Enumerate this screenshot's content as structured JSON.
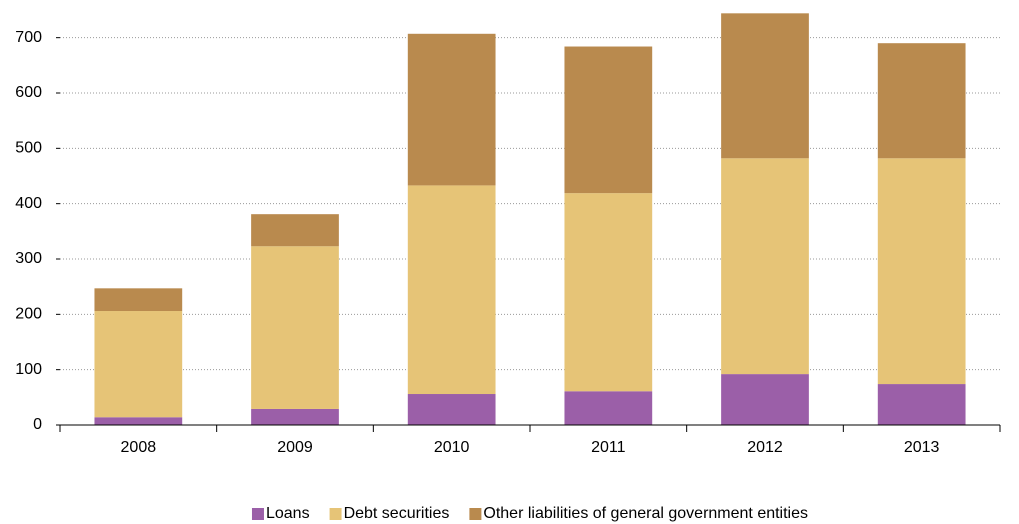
{
  "chart_data": {
    "type": "stacked_bar",
    "categories": [
      "2008",
      "2009",
      "2010",
      "2011",
      "2012",
      "2013"
    ],
    "series": [
      {
        "name": "Loans",
        "color": "#9b5fa8",
        "values": [
          14,
          29,
          56,
          61,
          92,
          74
        ]
      },
      {
        "name": "Debt securities",
        "color": "#e6c477",
        "values": [
          192,
          294,
          377,
          358,
          390,
          408
        ]
      },
      {
        "name": "Other liabilities of general government entities",
        "color": "#b98a4e",
        "values": [
          41,
          58,
          274,
          265,
          262,
          208
        ]
      }
    ],
    "ylim": [
      0,
      750
    ],
    "yticks": [
      0,
      100,
      200,
      300,
      400,
      500,
      600,
      700
    ],
    "grid": true,
    "legend": "bottom"
  }
}
